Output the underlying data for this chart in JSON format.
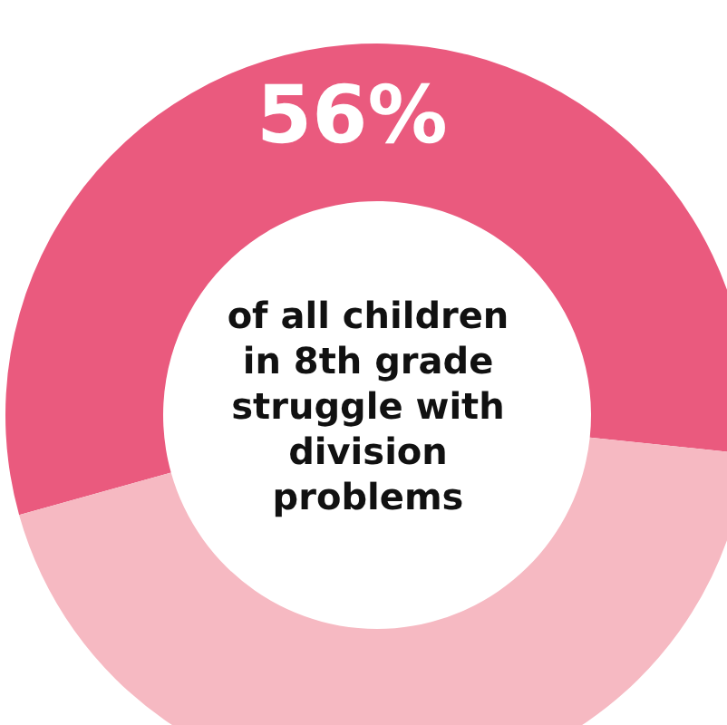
{
  "chart_data": {
    "type": "donut",
    "categories": [
      null,
      null
    ],
    "values": [
      56,
      44
    ],
    "colors": [
      "#ea5a7e",
      "#f6b9c2"
    ],
    "value_labels": [
      "56%",
      null
    ],
    "annotations": [
      "of all children in 8th grade struggle with division problems"
    ],
    "legend": false
  }
}
